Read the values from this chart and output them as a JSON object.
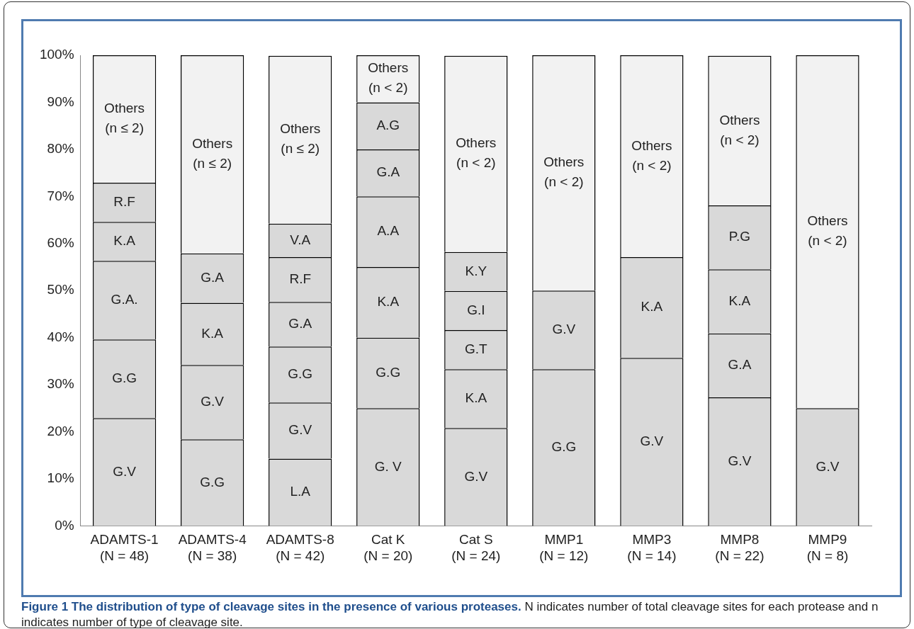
{
  "chart_data": {
    "type": "bar",
    "stacked": true,
    "title": "Figure 1 The distribution of type of cleavage sites in the presence of various proteases.",
    "annotations": [
      "N indicates number of total cleavage sites for each protease and n indicates number of type of cleavage site."
    ],
    "categories": [
      "ADAMTS-1\n(N = 48)",
      "ADAMTS-4\n(N = 38)",
      "ADAMTS-8\n(N = 42)",
      "Cat K\n(N = 20)",
      "Cat S\n(N = 24)",
      "MMP1\n(N = 12)",
      "MMP3\n(N = 14)",
      "MMP8\n(N = 22)",
      "MMP9\n(N = 8)"
    ],
    "ylim": [
      0,
      100
    ],
    "yticks": [
      {
        "value": 0,
        "label": "0%"
      },
      {
        "value": 10,
        "label": "10%"
      },
      {
        "value": 20,
        "label": "20%"
      },
      {
        "value": 30,
        "label": "30%"
      },
      {
        "value": 40,
        "label": "40%"
      },
      {
        "value": 50,
        "label": "50%"
      },
      {
        "value": 60,
        "label": "60%"
      },
      {
        "value": 70,
        "label": "70%"
      },
      {
        "value": 80,
        "label": "80%"
      },
      {
        "value": 90,
        "label": "90%"
      },
      {
        "value": 100,
        "label": "100%"
      }
    ],
    "grid": false,
    "legend": false,
    "series": [
      {
        "values": [
          22.9,
          18.4,
          14.3,
          25,
          20.8,
          33.3,
          35.7,
          27.3,
          25
        ],
        "value_labels": [
          "G.V",
          "G.G",
          "L.A",
          "G. V",
          "G.V",
          "G.G",
          "G.V",
          "G.V",
          "G.V"
        ],
        "colors": [
          "#d9d9d9",
          "#d9d9d9",
          "#d9d9d9",
          "#d9d9d9",
          "#d9d9d9",
          "#d9d9d9",
          "#d9d9d9",
          "#d9d9d9",
          "#d9d9d9"
        ]
      },
      {
        "values": [
          16.7,
          15.8,
          11.9,
          15,
          12.5,
          16.7,
          21.4,
          13.6,
          75
        ],
        "value_labels": [
          "G.G",
          "G.V",
          "G.V",
          "G.G",
          "K.A",
          "G.V",
          "K.A",
          "G.A",
          "Others\n(n < 2)"
        ],
        "colors": [
          "#d9d9d9",
          "#d9d9d9",
          "#d9d9d9",
          "#d9d9d9",
          "#d9d9d9",
          "#d9d9d9",
          "#d9d9d9",
          "#d9d9d9",
          "#f2f2f2"
        ]
      },
      {
        "values": [
          16.7,
          13.2,
          11.9,
          15,
          8.3,
          50,
          42.9,
          13.6,
          null
        ],
        "value_labels": [
          "G.A.",
          "K.A",
          "G.G",
          "K.A",
          "G.T",
          "Others\n(n < 2)",
          "Others\n(n < 2)",
          "K.A",
          null
        ],
        "colors": [
          "#d9d9d9",
          "#d9d9d9",
          "#d9d9d9",
          "#d9d9d9",
          "#d9d9d9",
          "#f2f2f2",
          "#f2f2f2",
          "#d9d9d9",
          "#f2f2f2"
        ]
      },
      {
        "values": [
          8.3,
          10.5,
          9.5,
          15,
          8.3,
          null,
          null,
          13.6,
          null
        ],
        "value_labels": [
          "K.A",
          "G.A",
          "G.A",
          "A.A",
          "G.I",
          null,
          null,
          "P.G",
          null
        ],
        "colors": [
          "#d9d9d9",
          "#d9d9d9",
          "#d9d9d9",
          "#d9d9d9",
          "#d9d9d9",
          "#f2f2f2",
          "#f2f2f2",
          "#d9d9d9",
          "#f2f2f2"
        ]
      },
      {
        "values": [
          8.3,
          42.1,
          9.5,
          10,
          8.3,
          null,
          null,
          31.8,
          null
        ],
        "value_labels": [
          "R.F",
          "Others\n(n ≤ 2)",
          "R.F",
          "G.A",
          "K.Y",
          null,
          null,
          "Others\n(n < 2)",
          null
        ],
        "colors": [
          "#d9d9d9",
          "#f2f2f2",
          "#d9d9d9",
          "#d9d9d9",
          "#d9d9d9",
          "#f2f2f2",
          "#f2f2f2",
          "#f2f2f2",
          "#f2f2f2"
        ]
      },
      {
        "values": [
          27.1,
          null,
          7.1,
          10,
          41.7,
          null,
          null,
          null,
          null
        ],
        "value_labels": [
          "Others\n(n ≤ 2)",
          null,
          "V.A",
          "A.G",
          "Others\n(n < 2)",
          null,
          null,
          null,
          null
        ],
        "colors": [
          "#f2f2f2",
          "#f2f2f2",
          "#d9d9d9",
          "#d9d9d9",
          "#f2f2f2",
          "#f2f2f2",
          "#f2f2f2",
          "#f2f2f2",
          "#f2f2f2"
        ]
      },
      {
        "values": [
          null,
          null,
          35.7,
          10,
          null,
          null,
          null,
          null,
          null
        ],
        "value_labels": [
          null,
          null,
          "Others\n(n ≤ 2)",
          "Others\n(n < 2)",
          null,
          null,
          null,
          null,
          null
        ],
        "colors": [
          "#f2f2f2",
          "#f2f2f2",
          "#f2f2f2",
          "#f2f2f2",
          "#f2f2f2",
          "#f2f2f2",
          "#f2f2f2",
          "#f2f2f2",
          "#f2f2f2"
        ]
      }
    ]
  }
}
